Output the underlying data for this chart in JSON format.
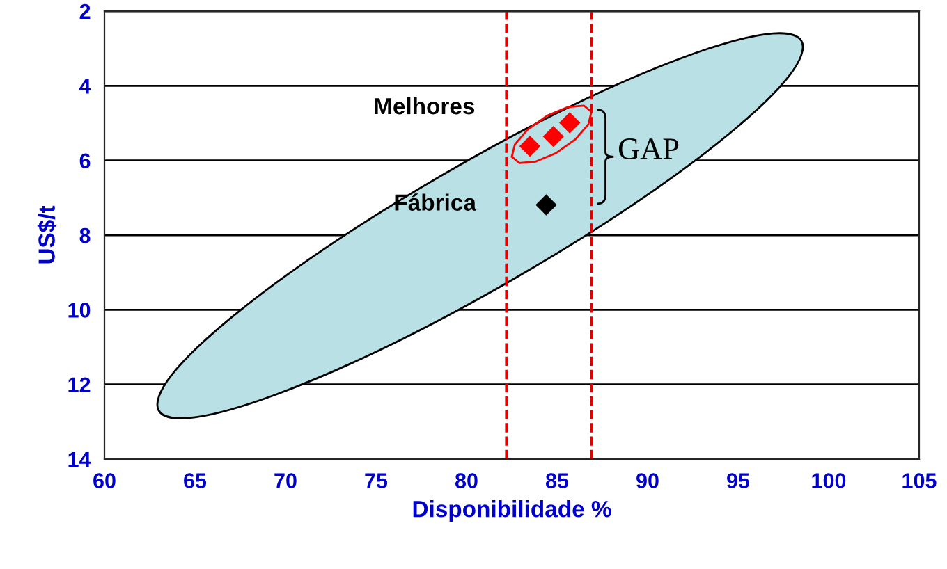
{
  "chart_data": {
    "type": "scatter",
    "xlabel": "Disponibilidade %",
    "ylabel": "US$/t",
    "xlim": [
      60,
      105
    ],
    "xticks": [
      60,
      65,
      70,
      75,
      80,
      85,
      90,
      95,
      100,
      105
    ],
    "ylim": [
      14,
      2
    ],
    "yticks": [
      2,
      4,
      6,
      8,
      10,
      12,
      14
    ],
    "grid": "y",
    "marker": "diamond",
    "series": [
      {
        "type": "area",
        "marker": "none",
        "color": "#b9e0e4",
        "x": [
          98.5,
          96.49,
          92.08,
          85.95,
          79.02,
          72.35,
          66.98,
          63.69,
          63.0,
          65.01,
          69.42,
          75.55,
          82.48,
          89.15,
          94.52,
          97.81,
          98.5
        ],
        "values": [
          2.8,
          2.62,
          3.22,
          4.5,
          6.29,
          8.3,
          10.22,
          11.76,
          12.7,
          12.88,
          12.28,
          11.0,
          9.21,
          7.2,
          5.28,
          3.74,
          2.8
        ]
      },
      {
        "type": "line",
        "marker": "none",
        "color": "#ff0000",
        "x": [
          82.5,
          82.67,
          83.38,
          84.45,
          85.58,
          86.48,
          86.9
        ],
        "values": [
          5.9,
          5.57,
          5.17,
          4.8,
          4.57,
          4.53,
          4.7
        ]
      },
      {
        "type": "line",
        "marker": "none",
        "color": "#ff0000",
        "x": [
          82.5,
          82.92,
          83.82,
          84.95,
          86.02,
          86.73,
          86.9
        ],
        "values": [
          5.9,
          6.07,
          6.03,
          5.8,
          5.43,
          5.03,
          4.7
        ]
      },
      {
        "color": "#ff0000",
        "x": [
          83.5,
          84.8,
          85.7
        ],
        "values": [
          5.62,
          5.36,
          4.99
        ]
      },
      {
        "color": "#000000",
        "x": [
          84.4
        ],
        "values": [
          7.19
        ]
      }
    ],
    "ref_lines": [
      {
        "axis": "x",
        "value": 82.2,
        "color": "#e00000",
        "line_style": "dashed"
      },
      {
        "axis": "x",
        "value": 86.9,
        "color": "#e00000",
        "line_style": "dashed"
      }
    ],
    "annotations": [
      "Melhores",
      "Fábrica",
      "GAP"
    ]
  }
}
